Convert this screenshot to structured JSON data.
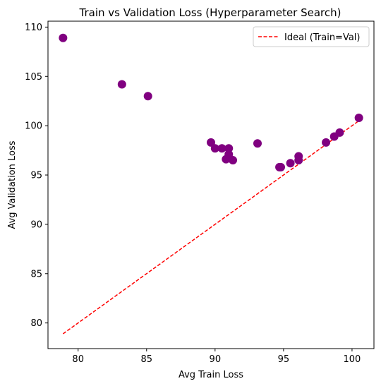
{
  "chart_data": {
    "type": "scatter",
    "title": "Train vs Validation Loss (Hyperparameter Search)",
    "xlabel": "Avg Train Loss",
    "ylabel": "Avg Validation Loss",
    "xlim": [
      77.8,
      101.6
    ],
    "ylim": [
      77.4,
      110.6
    ],
    "xticks": [
      80,
      85,
      90,
      95,
      100
    ],
    "yticks": [
      80,
      85,
      90,
      95,
      100,
      105,
      110
    ],
    "grid": false,
    "legend_position": "top-right",
    "points": {
      "color": "#800080",
      "x": [
        78.9,
        83.2,
        85.1,
        89.7,
        90.0,
        90.5,
        90.8,
        91.0,
        91.0,
        91.3,
        93.1,
        94.7,
        94.8,
        95.5,
        96.1,
        96.1,
        98.1,
        98.7,
        99.1,
        100.5
      ],
      "y": [
        108.9,
        104.2,
        103.0,
        98.3,
        97.7,
        97.7,
        96.6,
        97.7,
        97.1,
        96.5,
        98.2,
        95.8,
        95.8,
        96.2,
        96.5,
        96.9,
        98.3,
        98.9,
        99.3,
        100.8
      ]
    },
    "ideal_line": {
      "name": "Ideal (Train=Val)",
      "color": "#ff0000",
      "x": [
        78.9,
        100.5
      ],
      "y": [
        78.9,
        100.5
      ]
    }
  }
}
